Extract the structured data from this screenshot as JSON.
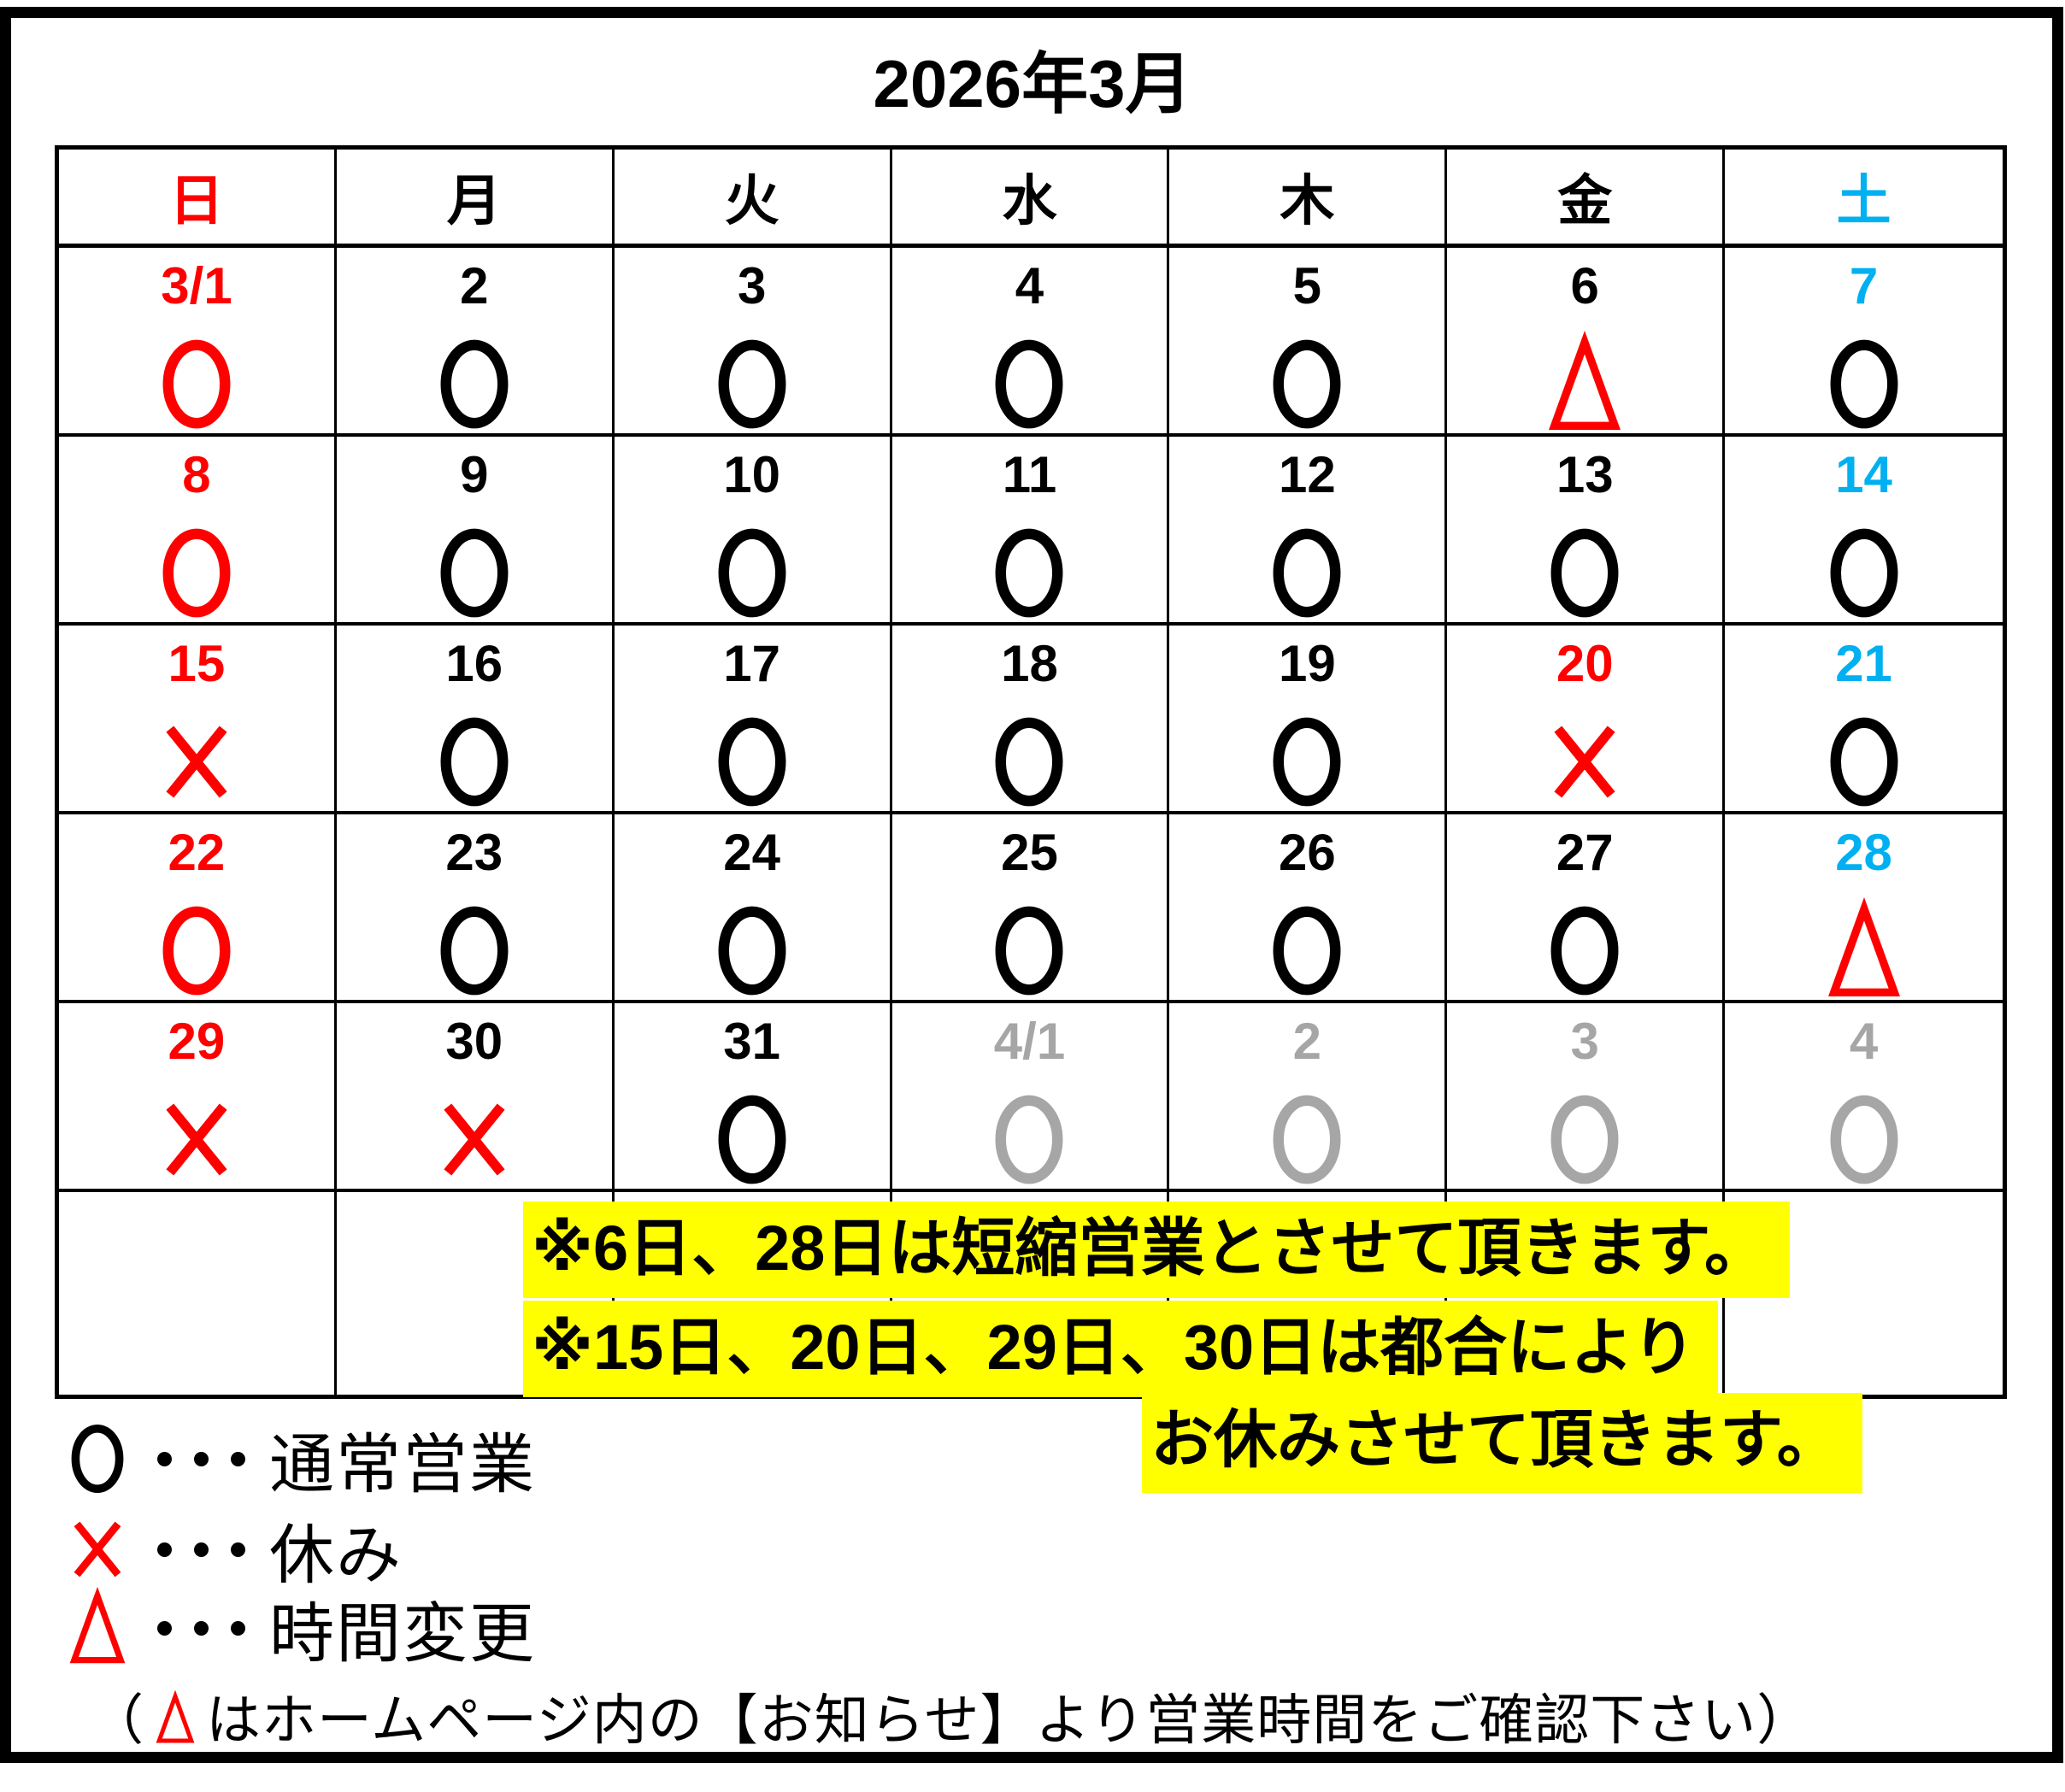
{
  "title": "2026年3月",
  "colors": {
    "black": "#000000",
    "red": "#FF0000",
    "blue": "#00B0F0",
    "gray": "#A6A6A6",
    "highlight": "#FFFF00"
  },
  "calendar": {
    "weekday_headers": [
      {
        "label": "日",
        "color": "red"
      },
      {
        "label": "月",
        "color": "black"
      },
      {
        "label": "火",
        "color": "black"
      },
      {
        "label": "水",
        "color": "black"
      },
      {
        "label": "木",
        "color": "black"
      },
      {
        "label": "金",
        "color": "black"
      },
      {
        "label": "土",
        "color": "blue"
      }
    ],
    "weeks": [
      [
        {
          "date": "3/1",
          "date_color": "red",
          "symbol": "circle",
          "symbol_color": "red"
        },
        {
          "date": "2",
          "date_color": "black",
          "symbol": "circle",
          "symbol_color": "black"
        },
        {
          "date": "3",
          "date_color": "black",
          "symbol": "circle",
          "symbol_color": "black"
        },
        {
          "date": "4",
          "date_color": "black",
          "symbol": "circle",
          "symbol_color": "black"
        },
        {
          "date": "5",
          "date_color": "black",
          "symbol": "circle",
          "symbol_color": "black"
        },
        {
          "date": "6",
          "date_color": "black",
          "symbol": "triangle",
          "symbol_color": "red"
        },
        {
          "date": "7",
          "date_color": "blue",
          "symbol": "circle",
          "symbol_color": "black"
        }
      ],
      [
        {
          "date": "8",
          "date_color": "red",
          "symbol": "circle",
          "symbol_color": "red"
        },
        {
          "date": "9",
          "date_color": "black",
          "symbol": "circle",
          "symbol_color": "black"
        },
        {
          "date": "10",
          "date_color": "black",
          "symbol": "circle",
          "symbol_color": "black"
        },
        {
          "date": "11",
          "date_color": "black",
          "symbol": "circle",
          "symbol_color": "black"
        },
        {
          "date": "12",
          "date_color": "black",
          "symbol": "circle",
          "symbol_color": "black"
        },
        {
          "date": "13",
          "date_color": "black",
          "symbol": "circle",
          "symbol_color": "black"
        },
        {
          "date": "14",
          "date_color": "blue",
          "symbol": "circle",
          "symbol_color": "black"
        }
      ],
      [
        {
          "date": "15",
          "date_color": "red",
          "symbol": "cross",
          "symbol_color": "red"
        },
        {
          "date": "16",
          "date_color": "black",
          "symbol": "circle",
          "symbol_color": "black"
        },
        {
          "date": "17",
          "date_color": "black",
          "symbol": "circle",
          "symbol_color": "black"
        },
        {
          "date": "18",
          "date_color": "black",
          "symbol": "circle",
          "symbol_color": "black"
        },
        {
          "date": "19",
          "date_color": "black",
          "symbol": "circle",
          "symbol_color": "black"
        },
        {
          "date": "20",
          "date_color": "red",
          "symbol": "cross",
          "symbol_color": "red"
        },
        {
          "date": "21",
          "date_color": "blue",
          "symbol": "circle",
          "symbol_color": "black"
        }
      ],
      [
        {
          "date": "22",
          "date_color": "red",
          "symbol": "circle",
          "symbol_color": "red"
        },
        {
          "date": "23",
          "date_color": "black",
          "symbol": "circle",
          "symbol_color": "black"
        },
        {
          "date": "24",
          "date_color": "black",
          "symbol": "circle",
          "symbol_color": "black"
        },
        {
          "date": "25",
          "date_color": "black",
          "symbol": "circle",
          "symbol_color": "black"
        },
        {
          "date": "26",
          "date_color": "black",
          "symbol": "circle",
          "symbol_color": "black"
        },
        {
          "date": "27",
          "date_color": "black",
          "symbol": "circle",
          "symbol_color": "black"
        },
        {
          "date": "28",
          "date_color": "blue",
          "symbol": "triangle",
          "symbol_color": "red"
        }
      ],
      [
        {
          "date": "29",
          "date_color": "red",
          "symbol": "cross",
          "symbol_color": "red"
        },
        {
          "date": "30",
          "date_color": "black",
          "symbol": "cross",
          "symbol_color": "red"
        },
        {
          "date": "31",
          "date_color": "black",
          "symbol": "circle",
          "symbol_color": "black"
        },
        {
          "date": "4/1",
          "date_color": "gray",
          "symbol": "circle",
          "symbol_color": "gray"
        },
        {
          "date": "2",
          "date_color": "gray",
          "symbol": "circle",
          "symbol_color": "gray"
        },
        {
          "date": "3",
          "date_color": "gray",
          "symbol": "circle",
          "symbol_color": "gray"
        },
        {
          "date": "4",
          "date_color": "gray",
          "symbol": "circle",
          "symbol_color": "gray"
        }
      ]
    ]
  },
  "notes": {
    "lines": [
      {
        "text": "※6日、28日は短縮営業とさせて頂きます。"
      },
      {
        "text": "※15日、20日、29日、30日は都合により"
      },
      {
        "text": "お休みさせて頂きます。"
      }
    ]
  },
  "legend": {
    "items": [
      {
        "symbol": "circle",
        "symbol_color": "black",
        "label": "通常営業"
      },
      {
        "symbol": "cross",
        "symbol_color": "red",
        "label": "休み"
      },
      {
        "symbol": "triangle",
        "symbol_color": "red",
        "label": "時間変更"
      }
    ],
    "footnote": {
      "prefix": "（",
      "symbol": "triangle",
      "symbol_color": "red",
      "suffix": "はホームページ内の【お知らせ】より営業時間をご確認下さい）"
    }
  }
}
